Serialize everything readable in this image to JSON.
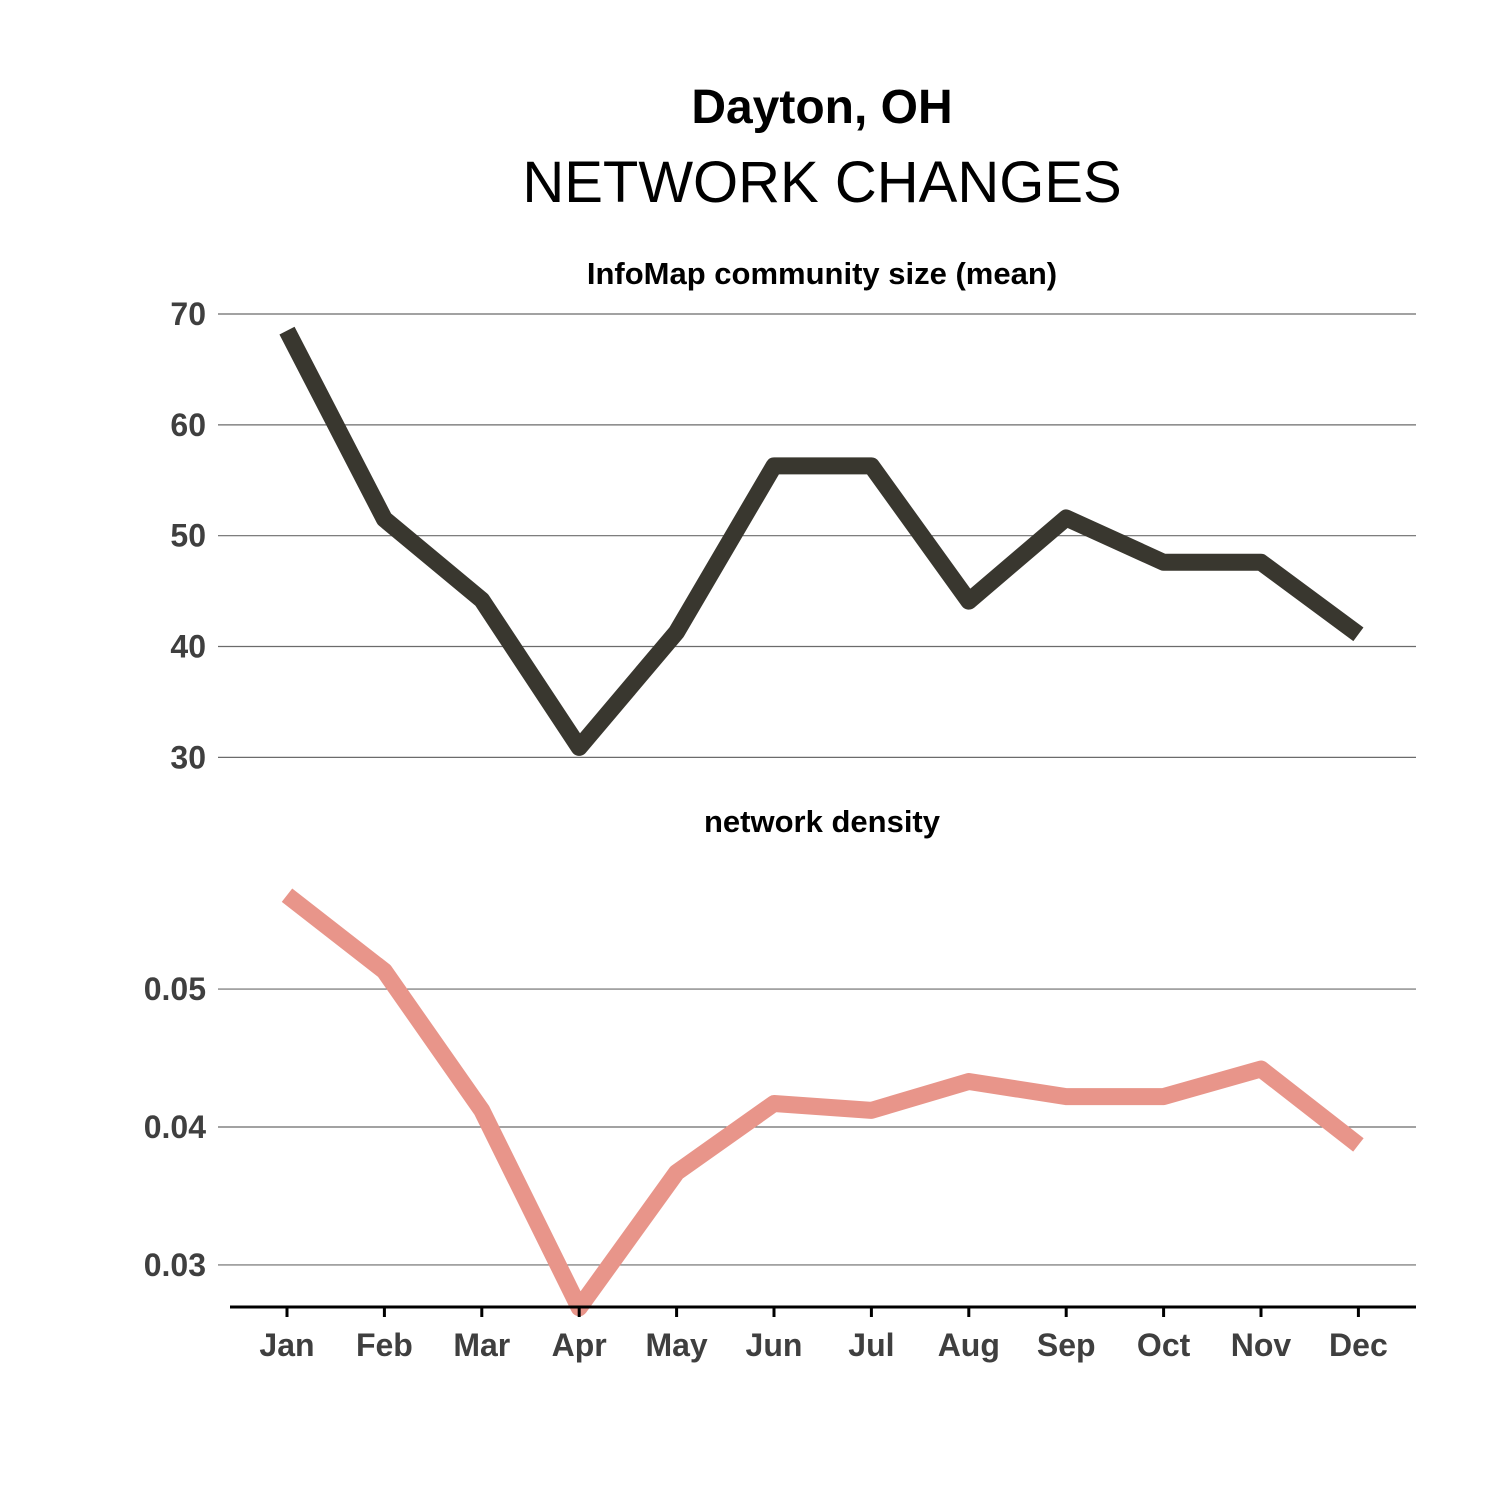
{
  "chart_data": {
    "type": "line",
    "title": "Dayton, OH",
    "subtitle": "NETWORK CHANGES",
    "categories": [
      "Jan",
      "Feb",
      "Mar",
      "Apr",
      "May",
      "Jun",
      "Jul",
      "Aug",
      "Sep",
      "Oct",
      "Nov",
      "Dec"
    ],
    "panels": [
      {
        "title": "InfoMap community size (mean)",
        "color": "#39372f",
        "ylim": [
          28.5,
          70
        ],
        "yticks": [
          30,
          40,
          50,
          60,
          70
        ],
        "ytick_labels": [
          "30",
          "40",
          "50",
          "60",
          "70"
        ],
        "values": [
          68.5,
          51.5,
          44.2,
          30.9,
          41.3,
          56.3,
          56.3,
          44.1,
          51.6,
          47.6,
          47.6,
          41.1
        ]
      },
      {
        "title": "network density",
        "color": "#e8958a",
        "ylim": [
          0.0255,
          0.0595
        ],
        "yticks": [
          0.03,
          0.04,
          0.05
        ],
        "ytick_labels": [
          "0.03",
          "0.04",
          "0.05"
        ],
        "values": [
          0.0568,
          0.0513,
          0.0412,
          0.0269,
          0.0367,
          0.0417,
          0.0412,
          0.0433,
          0.0422,
          0.0422,
          0.0442,
          0.0387
        ]
      }
    ],
    "grid": true
  }
}
